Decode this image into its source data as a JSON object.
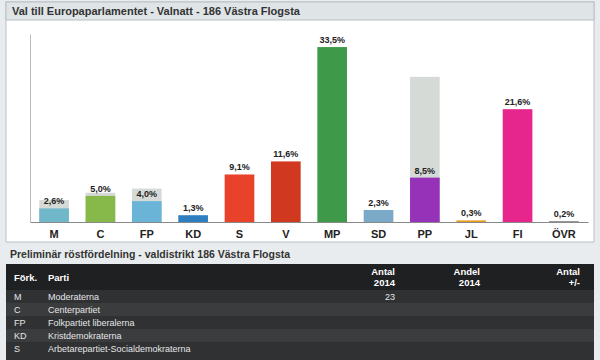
{
  "chart_data": {
    "type": "bar",
    "title": "Val till Europaparlamentet - Valnatt - 186 Västra Flogsta",
    "categories": [
      "M",
      "C",
      "FP",
      "KD",
      "S",
      "V",
      "MP",
      "SD",
      "PP",
      "JL",
      "FI",
      "ÖVR"
    ],
    "series": [
      {
        "color": "#d6dad6",
        "values": [
          4.2,
          5.6,
          6.4,
          null,
          null,
          null,
          null,
          null,
          27.8,
          null,
          null,
          null
        ]
      },
      {
        "colors": [
          "#6fb7c9",
          "#86b84a",
          "#6ab4d8",
          "#2f7fc0",
          "#e8422a",
          "#d0391f",
          "#3e9a48",
          "#7aaac8",
          "#9532b8",
          "#e89a1a",
          "#e6258d",
          "#999999"
        ],
        "values": [
          2.6,
          5.0,
          4.0,
          1.3,
          9.1,
          11.6,
          33.5,
          2.3,
          8.5,
          0.3,
          21.6,
          0.2
        ],
        "value_labels": [
          "2,6%",
          "5,0%",
          "4,0%",
          "1,3%",
          "9,1%",
          "11,6%",
          "33,5%",
          "2,3%",
          "8,5%",
          "0,3%",
          "21,6%",
          "0,2%"
        ],
        "data_labels": true
      }
    ],
    "ylim": [
      0,
      36
    ],
    "tick_labels": "x",
    "grid": false
  },
  "table": {
    "title": "Preliminär röstfördelning - valdistrikt 186 Västra Flogsta",
    "headers": [
      "Förk.",
      "Parti",
      "Antal 2014",
      "Andel 2014",
      "Antal +/-"
    ],
    "rows": [
      [
        "M",
        "Moderaterna",
        23
      ],
      [
        "C",
        "Centerpartiet"
      ],
      [
        "FP",
        "Folkpartiet liberalerna"
      ],
      [
        "KD",
        "Kristdemokraterna"
      ],
      [
        "S",
        "Arbetarepartiet-Socialdemokraterna"
      ]
    ]
  }
}
